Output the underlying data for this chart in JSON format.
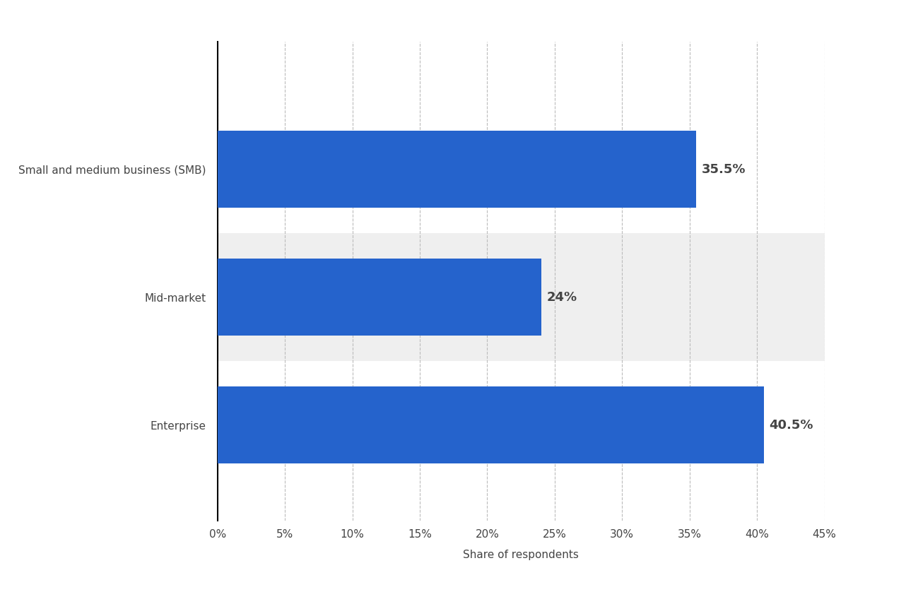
{
  "categories": [
    "Enterprise",
    "Mid-market",
    "Small and medium business (SMB)"
  ],
  "values": [
    40.5,
    24.0,
    35.5
  ],
  "labels": [
    "40.5%",
    "24%",
    "35.5%"
  ],
  "bar_color": "#2563CC",
  "alt_bg_color": "#EFEFEF",
  "background_color": "#FFFFFF",
  "xlabel": "Share of respondents",
  "xlim": [
    0,
    45
  ],
  "xticks": [
    0,
    5,
    10,
    15,
    20,
    25,
    30,
    35,
    40,
    45
  ],
  "xtick_labels": [
    "0%",
    "5%",
    "10%",
    "15%",
    "20%",
    "25%",
    "30%",
    "35%",
    "40%",
    "45%"
  ],
  "bar_height": 0.6,
  "label_fontsize": 13,
  "tick_fontsize": 11,
  "xlabel_fontsize": 11,
  "ytick_fontsize": 11,
  "grid_color": "#BBBBBB",
  "text_color": "#444444",
  "ylim": [
    -0.75,
    3.0
  ]
}
